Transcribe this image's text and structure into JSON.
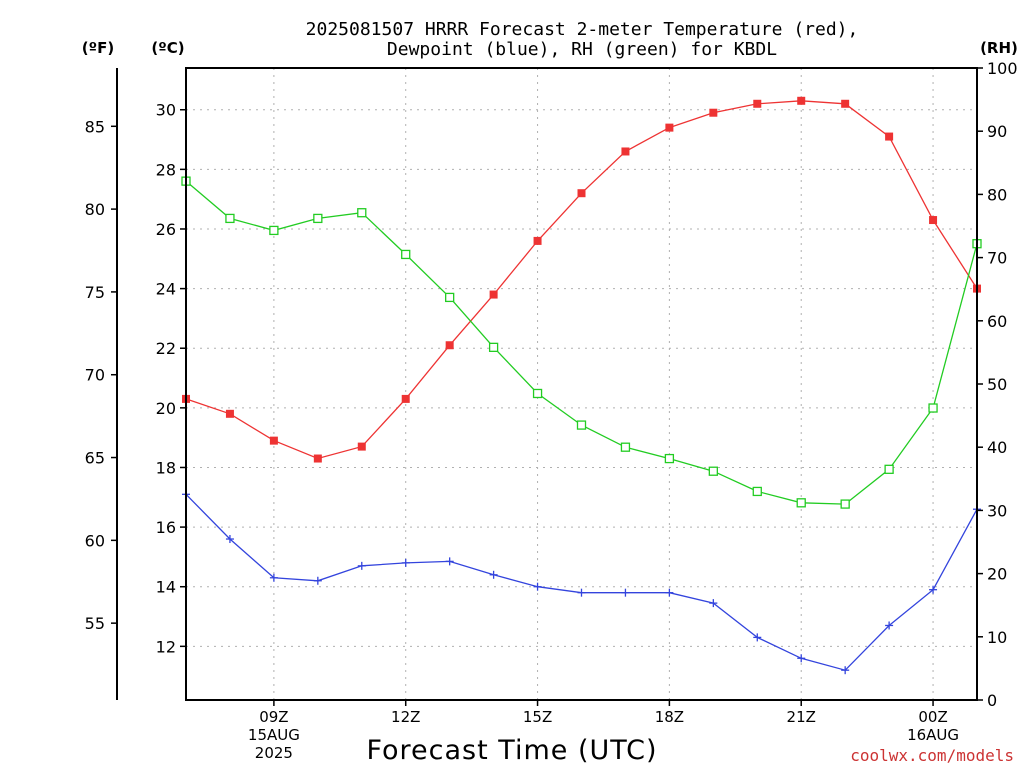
{
  "chart_data": {
    "type": "line",
    "title_line1": "2025081507 HRRR Forecast 2-meter Temperature (red),",
    "title_line2": "Dewpoint (blue), RH (green) for KBDL",
    "xlabel": "Forecast Time (UTC)",
    "unit_labels": {
      "fahrenheit": "(ºF)",
      "celsius": "(ºC)",
      "rh": "(RH)"
    },
    "credit": "coolwx.com/models",
    "x_hours": [
      7,
      8,
      9,
      10,
      11,
      12,
      13,
      14,
      15,
      16,
      17,
      18,
      19,
      20,
      21,
      22,
      23,
      24,
      25
    ],
    "x_ticks": [
      {
        "hour": 9,
        "lines": [
          "09Z",
          "15AUG",
          "2025"
        ]
      },
      {
        "hour": 12,
        "lines": [
          "12Z"
        ]
      },
      {
        "hour": 15,
        "lines": [
          "15Z"
        ]
      },
      {
        "hour": 18,
        "lines": [
          "18Z"
        ]
      },
      {
        "hour": 21,
        "lines": [
          "21Z"
        ]
      },
      {
        "hour": 24,
        "lines": [
          "00Z",
          "16AUG"
        ]
      }
    ],
    "xlim": [
      7,
      25
    ],
    "celsius_axis": {
      "ylim": [
        10.2,
        31.4
      ],
      "ticks": [
        12,
        14,
        16,
        18,
        20,
        22,
        24,
        26,
        28,
        30
      ]
    },
    "fahrenheit_axis": {
      "ticks": [
        55,
        60,
        65,
        70,
        75,
        80,
        85
      ]
    },
    "rh_axis": {
      "ylim": [
        0,
        100
      ],
      "ticks": [
        0,
        10,
        20,
        30,
        40,
        50,
        60,
        70,
        80,
        90,
        100
      ]
    },
    "grid": true,
    "series": [
      {
        "name": "Temperature",
        "axis": "celsius",
        "color": "#ee3333",
        "marker": "filled-square",
        "values": [
          20.3,
          19.8,
          18.9,
          18.3,
          18.7,
          20.3,
          22.1,
          23.8,
          25.6,
          27.2,
          28.6,
          29.4,
          29.9,
          30.2,
          30.3,
          30.2,
          29.1,
          26.3,
          24.0
        ]
      },
      {
        "name": "Dewpoint",
        "axis": "celsius",
        "color": "#3344dd",
        "marker": "plus",
        "values": [
          17.1,
          15.6,
          14.3,
          14.2,
          14.7,
          14.8,
          14.85,
          14.4,
          14.0,
          13.8,
          13.8,
          13.8,
          13.45,
          12.3,
          11.6,
          11.2,
          12.7,
          13.9,
          16.6
        ]
      },
      {
        "name": "RH",
        "axis": "rh",
        "color": "#22cc22",
        "marker": "open-square",
        "values": [
          82.1,
          76.2,
          74.3,
          76.2,
          77.1,
          70.5,
          63.7,
          55.8,
          48.5,
          43.5,
          40.0,
          38.2,
          36.2,
          33.0,
          31.2,
          31.0,
          36.5,
          46.2,
          72.2
        ]
      }
    ]
  }
}
